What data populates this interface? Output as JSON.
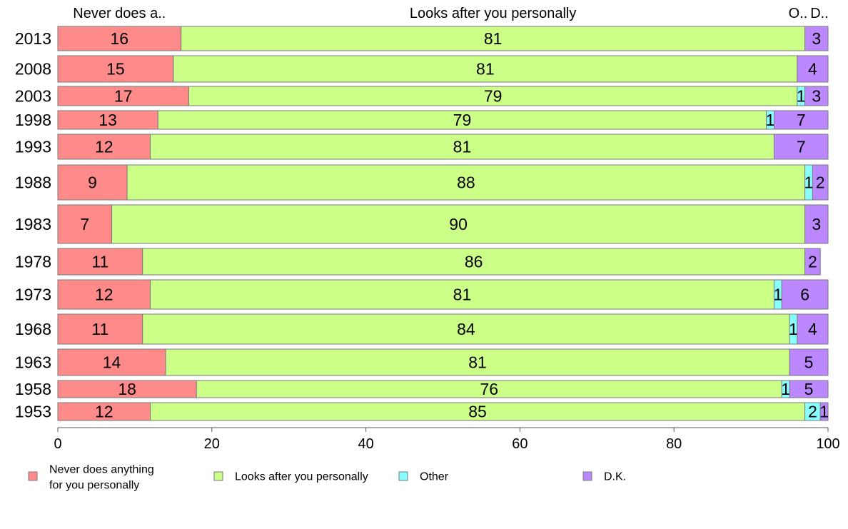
{
  "chart_data": {
    "type": "bar",
    "orientation": "horizontal",
    "stacked": true,
    "categories": [
      "2013",
      "2008",
      "2003",
      "1998",
      "1993",
      "1988",
      "1983",
      "1978",
      "1973",
      "1968",
      "1963",
      "1958",
      "1953"
    ],
    "series": [
      {
        "name": "Never does anything for you personally",
        "short_label": "Never does a..",
        "color": "#ff8a8a",
        "values": [
          16,
          15,
          17,
          13,
          12,
          9,
          7,
          11,
          12,
          11,
          14,
          18,
          12
        ]
      },
      {
        "name": "Looks after you personally",
        "short_label": "Looks after you personally",
        "color": "#ccff88",
        "values": [
          81,
          81,
          79,
          79,
          81,
          88,
          90,
          86,
          81,
          84,
          81,
          76,
          85
        ]
      },
      {
        "name": "Other",
        "short_label": "O..",
        "color": "#88ffff",
        "values": [
          0,
          0,
          1,
          1,
          0,
          1,
          0,
          0,
          1,
          1,
          0,
          1,
          2
        ]
      },
      {
        "name": "D.K.",
        "short_label": "D..",
        "color": "#bb88ff",
        "values": [
          3,
          4,
          3,
          7,
          7,
          2,
          3,
          2,
          6,
          4,
          5,
          5,
          1
        ]
      }
    ],
    "xlim": [
      0,
      100
    ],
    "xticks": [
      0,
      20,
      40,
      60,
      80,
      100
    ],
    "xlabel": "",
    "ylabel": "",
    "grid": false,
    "legend_position": "bottom",
    "legend": [
      {
        "lines": [
          "Never does anything",
          "for you personally"
        ],
        "color": "#ff8a8a"
      },
      {
        "lines": [
          "Looks after you personally"
        ],
        "color": "#ccff88"
      },
      {
        "lines": [
          "Other"
        ],
        "color": "#88ffff"
      },
      {
        "lines": [
          "D.K."
        ],
        "color": "#bb88ff"
      }
    ]
  }
}
